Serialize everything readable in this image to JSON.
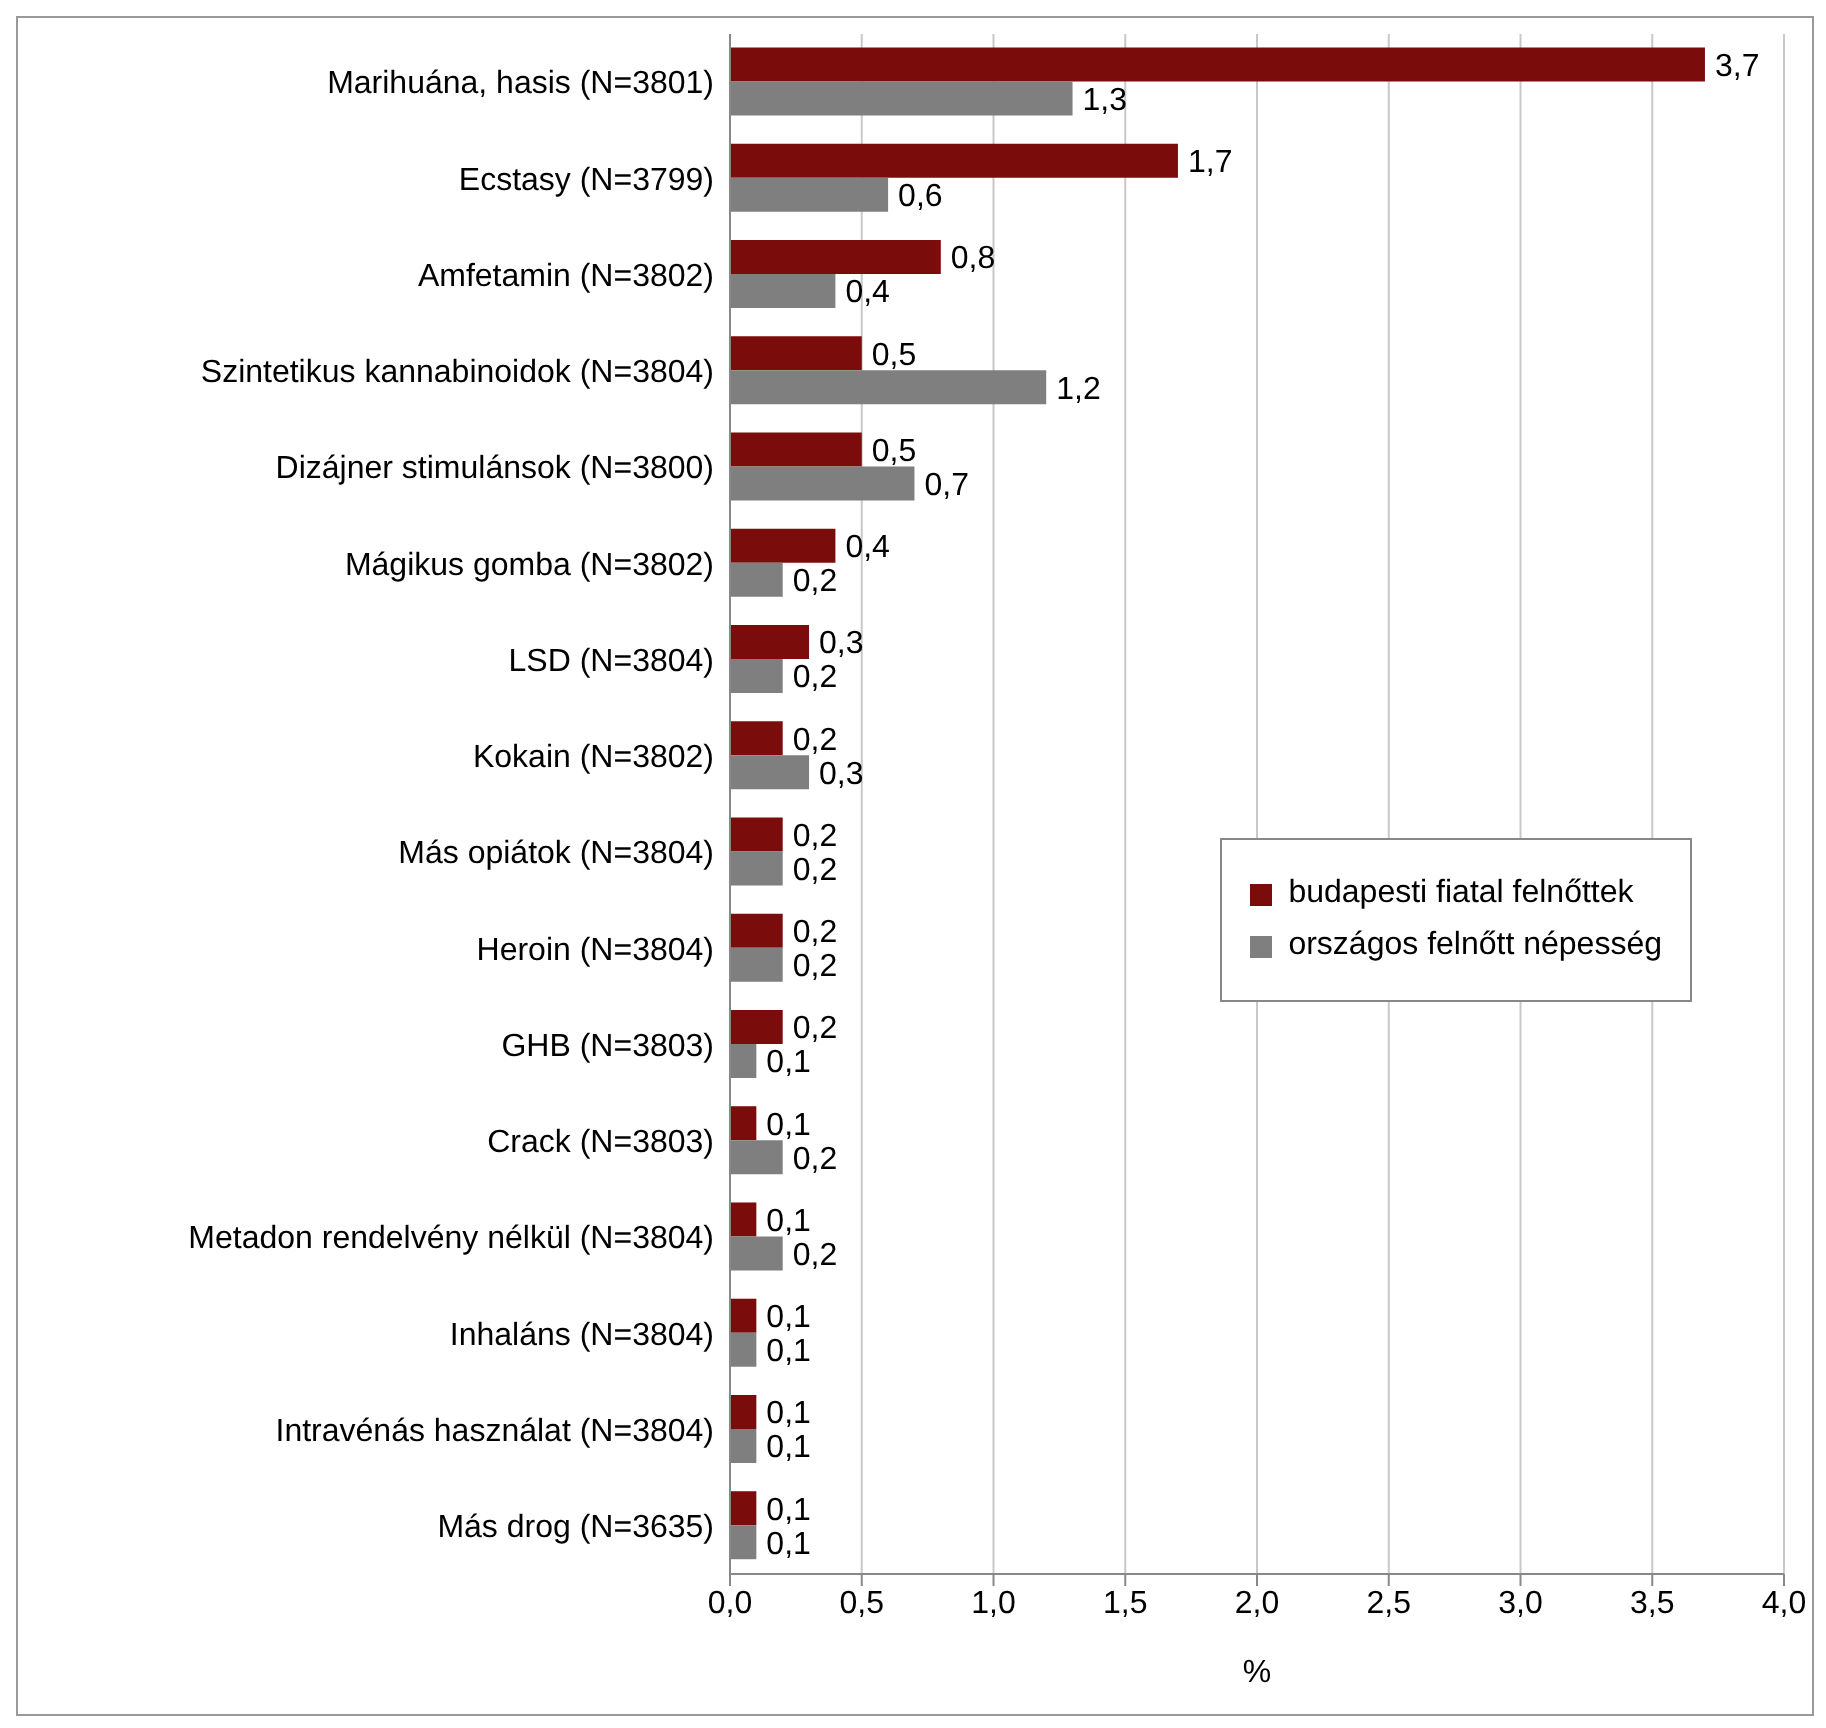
{
  "chart_data": {
    "type": "bar",
    "orientation": "horizontal",
    "xlabel": "%",
    "categories": [
      "Marihuána, hasis (N=3801)",
      "Ecstasy (N=3799)",
      "Amfetamin (N=3802)",
      "Szintetikus kannabinoidok (N=3804)",
      "Dizájner stimulánsok (N=3800)",
      "Mágikus gomba (N=3802)",
      "LSD (N=3804)",
      "Kokain (N=3802)",
      "Más opiátok (N=3804)",
      "Heroin (N=3804)",
      "GHB (N=3803)",
      "Crack (N=3803)",
      "Metadon rendelvény nélkül (N=3804)",
      "Inhaláns (N=3804)",
      "Intravénás használat (N=3804)",
      "Más drog (N=3635)"
    ],
    "series": [
      {
        "name": "budapesti fiatal felnőttek",
        "color": "#7b0c0c",
        "values": [
          3.7,
          1.7,
          0.8,
          0.5,
          0.5,
          0.4,
          0.3,
          0.2,
          0.2,
          0.2,
          0.2,
          0.1,
          0.1,
          0.1,
          0.1,
          0.1
        ],
        "value_labels": [
          "3,7",
          "1,7",
          "0,8",
          "0,5",
          "0,5",
          "0,4",
          "0,3",
          "0,2",
          "0,2",
          "0,2",
          "0,2",
          "0,1",
          "0,1",
          "0,1",
          "0,1",
          "0,1"
        ]
      },
      {
        "name": "országos felnőtt népesség",
        "color": "#7f7f7f",
        "values": [
          1.3,
          0.6,
          0.4,
          1.2,
          0.7,
          0.2,
          0.2,
          0.3,
          0.2,
          0.2,
          0.1,
          0.2,
          0.2,
          0.1,
          0.1,
          0.1
        ],
        "value_labels": [
          "1,3",
          "0,6",
          "0,4",
          "1,2",
          "0,7",
          "0,2",
          "0,2",
          "0,3",
          "0,2",
          "0,2",
          "0,1",
          "0,2",
          "0,2",
          "0,1",
          "0,1",
          "0,1"
        ]
      }
    ],
    "xlim": [
      0,
      4
    ],
    "xticks": [
      {
        "value": 0,
        "label": "0,0"
      },
      {
        "value": 0.5,
        "label": "0,5"
      },
      {
        "value": 1,
        "label": "1,0"
      },
      {
        "value": 1.5,
        "label": "1,5"
      },
      {
        "value": 2,
        "label": "2,0"
      },
      {
        "value": 2.5,
        "label": "2,5"
      },
      {
        "value": 3,
        "label": "3,0"
      },
      {
        "value": 3.5,
        "label": "3,5"
      },
      {
        "value": 4,
        "label": "4,0"
      }
    ],
    "grid": "x",
    "legend": "right"
  }
}
